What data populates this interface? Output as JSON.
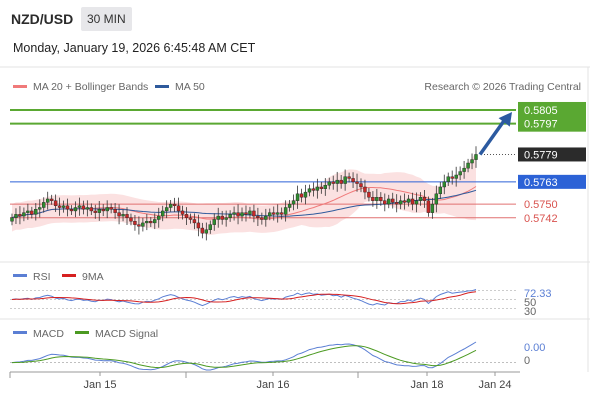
{
  "header": {
    "symbol": "NZD/USD",
    "interval": "30 MIN",
    "datetime": "Monday, January 19, 2026 6:45:48 AM CET"
  },
  "legend": {
    "ma20": "MA 20 + Bollinger Bands",
    "ma50": "MA 50",
    "credit": "Research © 2026 Trading Central"
  },
  "colors": {
    "ma20": "#f07a7a",
    "ma50": "#2e5a9c",
    "band_fill": "#fbe1e1",
    "resistance": "#5aa832",
    "support_blue": "#2c62d6",
    "support_red": "#e07070",
    "candle_up": "#2e8b2e",
    "candle_down": "#c62828",
    "rsi": "#5b7fd4",
    "rsi_ma": "#d62020",
    "macd": "#5b7fd4",
    "macd_signal": "#4c9a22",
    "last_price_bg": "#2b2b2b"
  },
  "chart_data": [
    {
      "type": "candlestick",
      "title": "NZD/USD",
      "ylim": [
        0.5722,
        0.5812
      ],
      "x_ticks": [
        "Jan 15",
        "Jan 16",
        "Jan 18",
        "Jan 24"
      ],
      "levels": [
        {
          "value": 0.5805,
          "label": "0.5805",
          "kind": "resistance"
        },
        {
          "value": 0.5797,
          "label": "0.5797",
          "kind": "resistance"
        },
        {
          "value": 0.5779,
          "label": "0.5779",
          "kind": "last"
        },
        {
          "value": 0.5763,
          "label": "0.5763",
          "kind": "support-blue"
        },
        {
          "value": 0.575,
          "label": "0.5750",
          "kind": "support-red"
        },
        {
          "value": 0.5742,
          "label": "0.5742",
          "kind": "support-red"
        }
      ],
      "closes": [
        0.5742,
        0.5744,
        0.5743,
        0.5745,
        0.5746,
        0.5744,
        0.5747,
        0.5748,
        0.5751,
        0.5753,
        0.5752,
        0.5749,
        0.5748,
        0.5749,
        0.5747,
        0.5746,
        0.5748,
        0.5749,
        0.5747,
        0.5748,
        0.5746,
        0.5745,
        0.5747,
        0.5746,
        0.5748,
        0.5747,
        0.5745,
        0.5743,
        0.5744,
        0.5742,
        0.574,
        0.5738,
        0.5737,
        0.5739,
        0.574,
        0.5739,
        0.5741,
        0.5743,
        0.5746,
        0.5748,
        0.575,
        0.5749,
        0.5746,
        0.5744,
        0.5742,
        0.5741,
        0.5739,
        0.5736,
        0.5733,
        0.5735,
        0.5738,
        0.5741,
        0.5743,
        0.5741,
        0.5742,
        0.5744,
        0.5745,
        0.5743,
        0.5745,
        0.5744,
        0.5746,
        0.5743,
        0.5742,
        0.5741,
        0.5743,
        0.5745,
        0.5744,
        0.5745,
        0.5744,
        0.5748,
        0.575,
        0.5752,
        0.5756,
        0.5754,
        0.5757,
        0.5759,
        0.5758,
        0.576,
        0.5759,
        0.5761,
        0.5763,
        0.5762,
        0.5764,
        0.5762,
        0.5766,
        0.5765,
        0.5763,
        0.5762,
        0.576,
        0.5757,
        0.5754,
        0.5752,
        0.5754,
        0.5752,
        0.575,
        0.5753,
        0.5751,
        0.575,
        0.5752,
        0.5751,
        0.5753,
        0.575,
        0.5752,
        0.5754,
        0.5752,
        0.5745,
        0.575,
        0.5756,
        0.576,
        0.5763,
        0.5766,
        0.5765,
        0.5767,
        0.5769,
        0.5771,
        0.5774,
        0.5776,
        0.5779
      ],
      "forecast_target": 0.5805
    },
    {
      "type": "line",
      "title": "RSI",
      "series": [
        {
          "name": "RSI"
        },
        {
          "name": "9MA"
        }
      ],
      "y_ticks": [
        72.33,
        50,
        30
      ],
      "last_value": 72.33
    },
    {
      "type": "line",
      "title": "MACD",
      "series": [
        {
          "name": "MACD"
        },
        {
          "name": "MACD Signal"
        }
      ],
      "y_ticks": [
        0.0,
        0
      ],
      "last_value": 0.0
    }
  ],
  "axis": {
    "rsi_labels": [
      "72.33",
      "50",
      "30"
    ],
    "macd_labels": [
      "0.00",
      "0"
    ]
  }
}
